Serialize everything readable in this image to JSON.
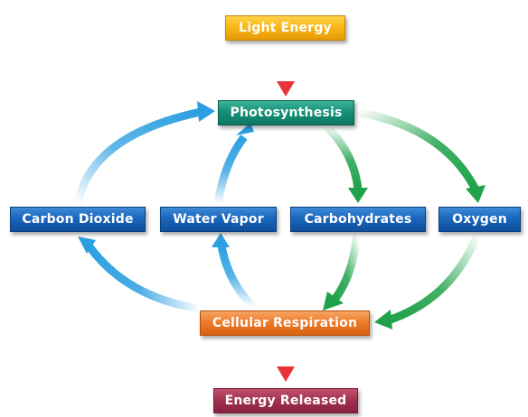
{
  "diagram": {
    "nodes": {
      "light_energy": "Light Energy",
      "photosynthesis": "Photosynthesis",
      "carbon_dioxide": "Carbon Dioxide",
      "water_vapor": "Water Vapor",
      "carbohydrates": "Carbohydrates",
      "oxygen": "Oxygen",
      "cellular_respiration": "Cellular Respiration",
      "energy_released": "Energy Released"
    },
    "edges": [
      {
        "from": "light_energy",
        "to": "photosynthesis",
        "color": "#e8333a"
      },
      {
        "from": "photosynthesis",
        "to": "carbohydrates",
        "color": "#1fa24a"
      },
      {
        "from": "photosynthesis",
        "to": "oxygen",
        "color": "#1fa24a"
      },
      {
        "from": "carbohydrates",
        "to": "cellular_respiration",
        "color": "#1fa24a"
      },
      {
        "from": "oxygen",
        "to": "cellular_respiration",
        "color": "#1fa24a"
      },
      {
        "from": "cellular_respiration",
        "to": "carbon_dioxide",
        "color": "#2b9fe0"
      },
      {
        "from": "cellular_respiration",
        "to": "water_vapor",
        "color": "#2b9fe0"
      },
      {
        "from": "carbon_dioxide",
        "to": "photosynthesis",
        "color": "#2b9fe0"
      },
      {
        "from": "water_vapor",
        "to": "photosynthesis",
        "color": "#2b9fe0"
      },
      {
        "from": "cellular_respiration",
        "to": "energy_released",
        "color": "#e8333a"
      }
    ],
    "colors": {
      "light_energy_box": "#f9b81a",
      "photosynthesis_box": "#169279",
      "compound_box": "#1a66bd",
      "cellular_respiration_box": "#ee7c2a",
      "energy_released_box": "#a43353",
      "arrow_red": "#e8333a",
      "arrow_green": "#1fa24a",
      "arrow_blue": "#2b9fe0"
    }
  }
}
